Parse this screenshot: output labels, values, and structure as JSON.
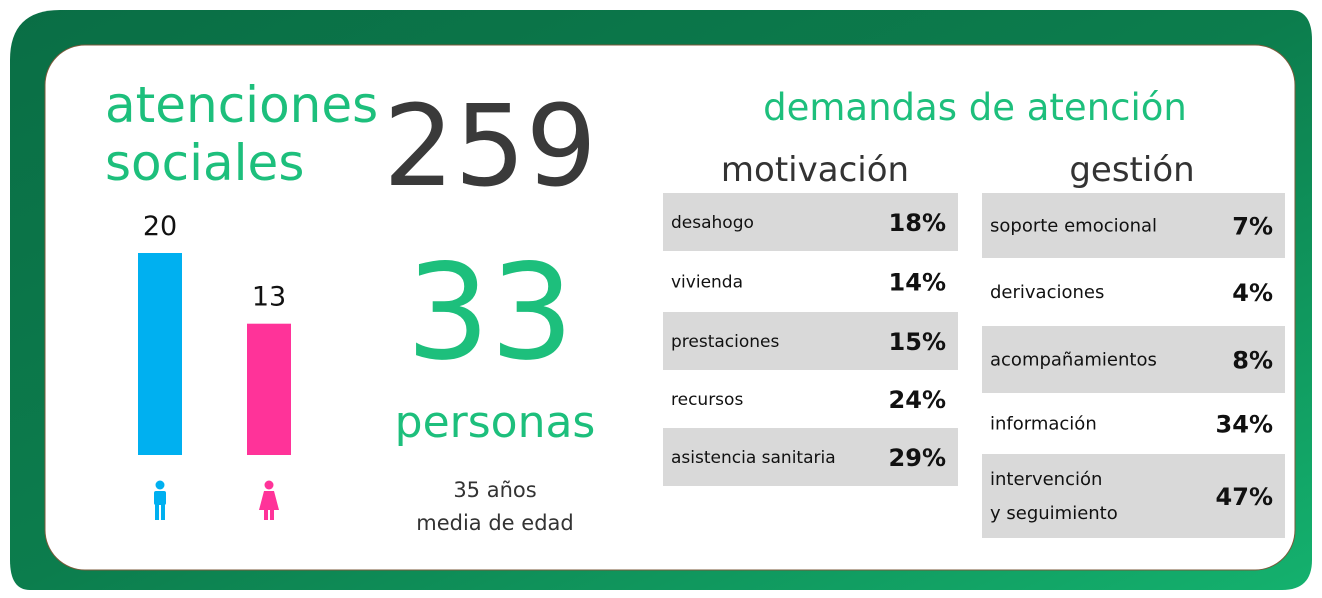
{
  "title_lines": [
    "atenciones",
    "sociales"
  ],
  "total": "259",
  "gender_bars": {
    "values": [
      20,
      13
    ],
    "colors": [
      "#00b0f0",
      "#ff3399"
    ]
  },
  "people": {
    "count": "33",
    "label": "personas"
  },
  "age_lines": [
    "35 años",
    "media de edad"
  ],
  "demands": {
    "title": "demandas de atención",
    "motivacion": {
      "title": "motivación",
      "rows": [
        {
          "label": "desahogo",
          "value": "18%"
        },
        {
          "label": "vivienda",
          "value": "14%"
        },
        {
          "label": "prestaciones",
          "value": "15%"
        },
        {
          "label": "recursos",
          "value": "24%"
        },
        {
          "label": "asistencia sanitaria",
          "value": "29%"
        }
      ]
    },
    "gestion": {
      "title": "gestión",
      "rows": [
        {
          "label": "soporte emocional",
          "value": "7%"
        },
        {
          "label": "derivaciones",
          "value": "4%"
        },
        {
          "label": "acompañamientos",
          "value": "8%"
        },
        {
          "label": "información",
          "value": "34%"
        },
        {
          "label": [
            "intervención",
            "y seguimiento"
          ],
          "value": "47%"
        }
      ]
    }
  }
}
